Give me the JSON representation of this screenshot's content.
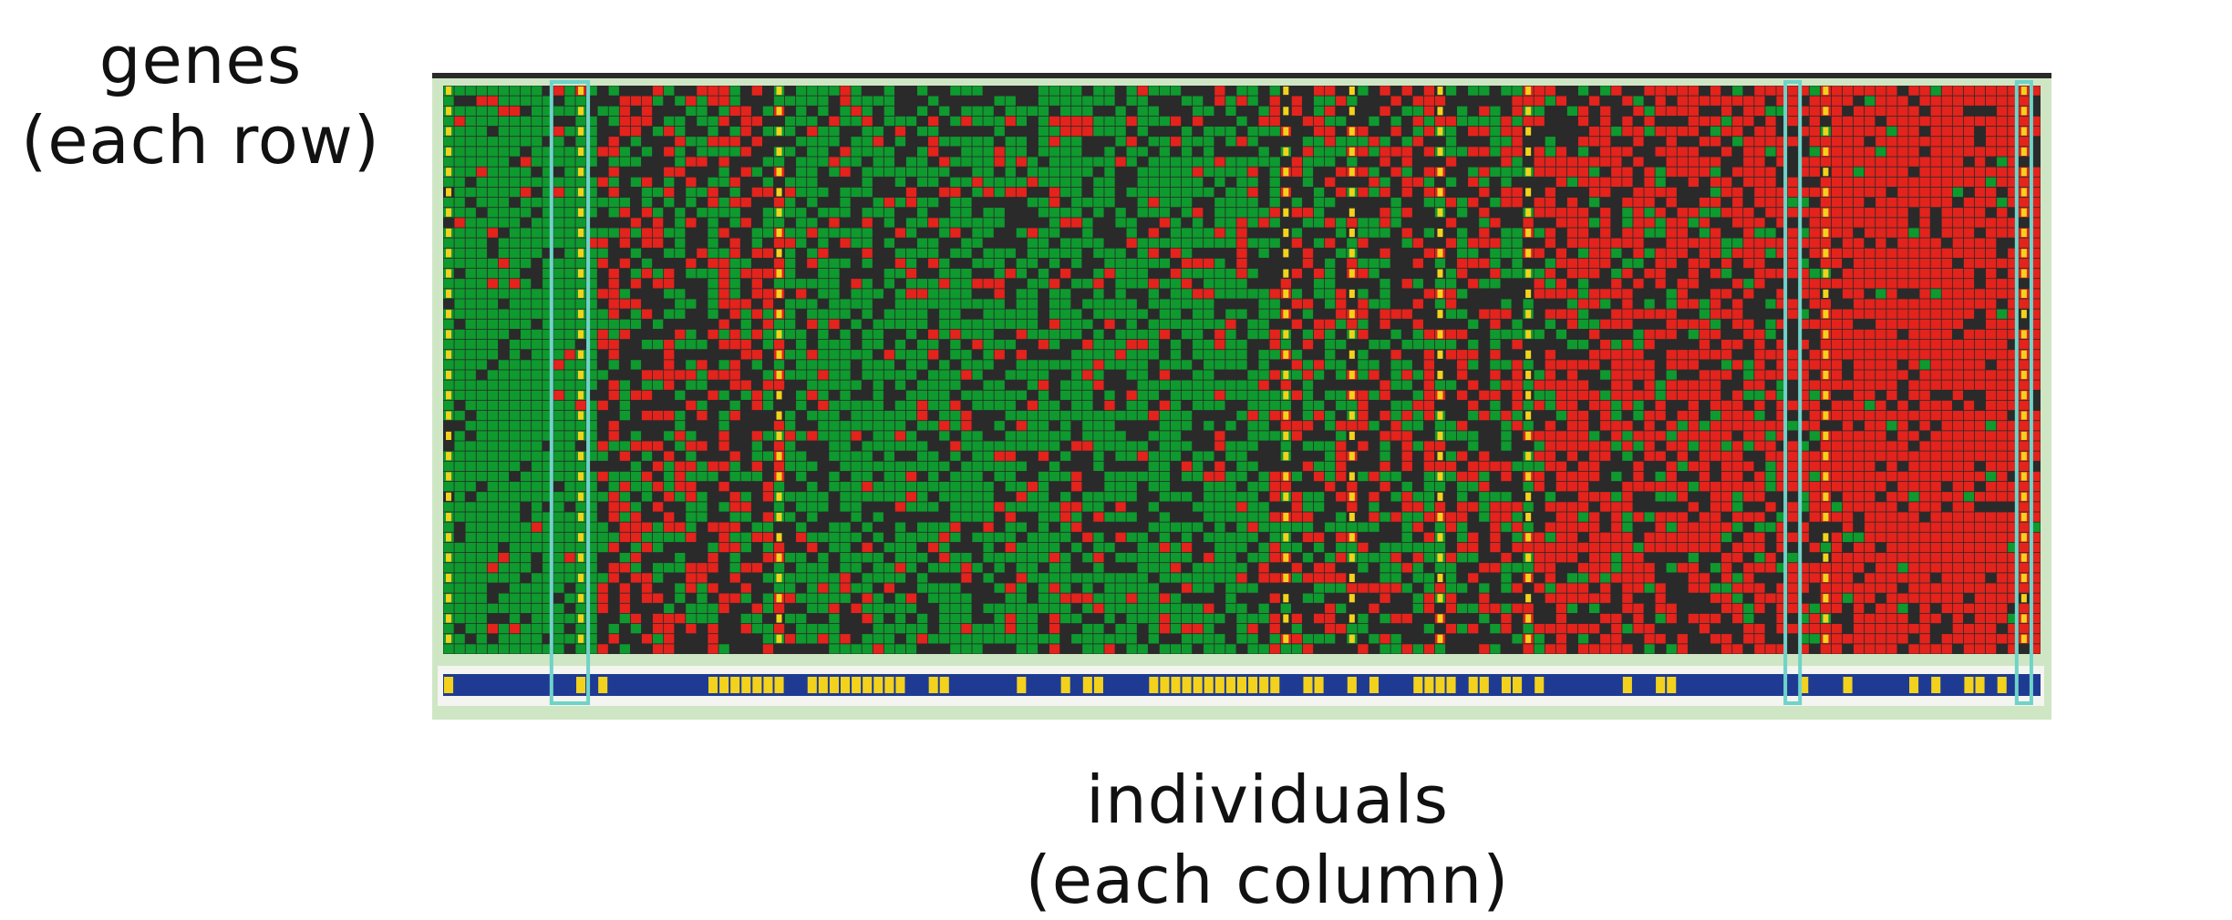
{
  "labels": {
    "rows": {
      "line1": "genes",
      "line2": "(each row)"
    },
    "columns": {
      "line1": "individuals",
      "line2": "(each column)"
    }
  },
  "chart_data": {
    "type": "heatmap",
    "title": "",
    "ylabel": "genes (each row)",
    "xlabel": "individuals (each column)",
    "n_rows": 56,
    "n_cols": 145,
    "colormap": {
      "high": "#e3231c",
      "mid": "#2a2a2a",
      "low": "#0e9a2e"
    },
    "column_groups": [
      {
        "from": 0,
        "to": 9,
        "tendency": "strong-green"
      },
      {
        "from": 10,
        "to": 13,
        "tendency": "strong-green",
        "highlighted": true
      },
      {
        "from": 14,
        "to": 30,
        "tendency": "mixed-red-green"
      },
      {
        "from": 31,
        "to": 74,
        "tendency": "green"
      },
      {
        "from": 75,
        "to": 99,
        "tendency": "mixed-red-green"
      },
      {
        "from": 100,
        "to": 124,
        "tendency": "red"
      },
      {
        "from": 125,
        "to": 145,
        "tendency": "strong-red"
      }
    ],
    "separator_columns": [
      0,
      12,
      30,
      76,
      82,
      90,
      98,
      125,
      143
    ],
    "separator_color": "#f2d21c",
    "highlight_columns": [
      [
        10,
        13
      ],
      [
        122,
        123
      ],
      [
        143,
        144
      ]
    ],
    "highlight_color": "#6fd3c8",
    "class_bar": {
      "colors": [
        "#1f3a93",
        "#f2d21c"
      ],
      "yellow_runs": [
        [
          0,
          1
        ],
        [
          12,
          13
        ],
        [
          14,
          15
        ],
        [
          24,
          31
        ],
        [
          33,
          42
        ],
        [
          44,
          46
        ],
        [
          52,
          53
        ],
        [
          56,
          57
        ],
        [
          58,
          60
        ],
        [
          64,
          76
        ],
        [
          78,
          80
        ],
        [
          82,
          83
        ],
        [
          84,
          85
        ],
        [
          88,
          92
        ],
        [
          93,
          95
        ],
        [
          96,
          98
        ],
        [
          99,
          100
        ],
        [
          107,
          108
        ],
        [
          110,
          112
        ],
        [
          123,
          124
        ],
        [
          127,
          128
        ],
        [
          133,
          134
        ],
        [
          135,
          136
        ],
        [
          138,
          140
        ],
        [
          141,
          142
        ]
      ]
    }
  }
}
